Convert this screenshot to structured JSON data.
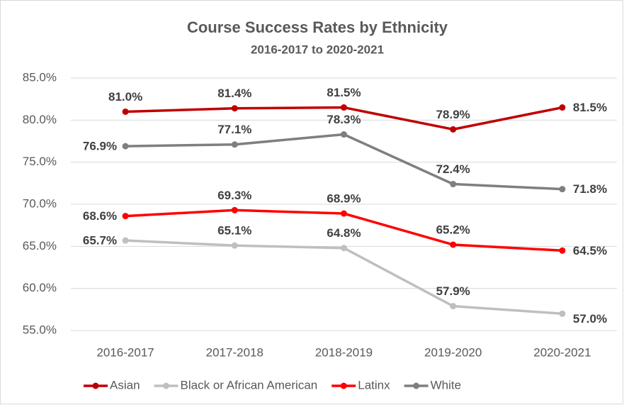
{
  "chart_data": {
    "type": "line",
    "title": "Course Success Rates by Ethnicity",
    "subtitle": "2016-2017 to 2020-2021",
    "categories": [
      "2016-2017",
      "2017-2018",
      "2018-2019",
      "2019-2020",
      "2020-2021"
    ],
    "ylim": [
      55,
      85
    ],
    "yticks": [
      {
        "value": 55,
        "label": "55.0%"
      },
      {
        "value": 60,
        "label": "60.0%"
      },
      {
        "value": 65,
        "label": "65.0%"
      },
      {
        "value": 70,
        "label": "70.0%"
      },
      {
        "value": 75,
        "label": "75.0%"
      },
      {
        "value": 80,
        "label": "80.0%"
      },
      {
        "value": 85,
        "label": "85.0%"
      }
    ],
    "grid": true,
    "legend": "bottom",
    "series": [
      {
        "name": "Asian",
        "color": "#c00000",
        "values": [
          81.0,
          81.4,
          81.5,
          78.9,
          81.5
        ],
        "value_labels": [
          "81.0%",
          "81.4%",
          "81.5%",
          "78.9%",
          "81.5%"
        ]
      },
      {
        "name": "Black or African American",
        "color": "#bfbfbf",
        "values": [
          65.7,
          65.1,
          64.8,
          57.9,
          57.0
        ],
        "value_labels": [
          "65.7%",
          "65.1%",
          "64.8%",
          "57.9%",
          "57.0%"
        ]
      },
      {
        "name": "Latinx",
        "color": "#ff0000",
        "values": [
          68.6,
          69.3,
          68.9,
          65.2,
          64.5
        ],
        "value_labels": [
          "68.6%",
          "69.3%",
          "68.9%",
          "65.2%",
          "64.5%"
        ]
      },
      {
        "name": "White",
        "color": "#7f7f7f",
        "values": [
          76.9,
          77.1,
          78.3,
          72.4,
          71.8
        ],
        "value_labels": [
          "76.9%",
          "77.1%",
          "78.3%",
          "72.4%",
          "71.8%"
        ]
      }
    ]
  }
}
